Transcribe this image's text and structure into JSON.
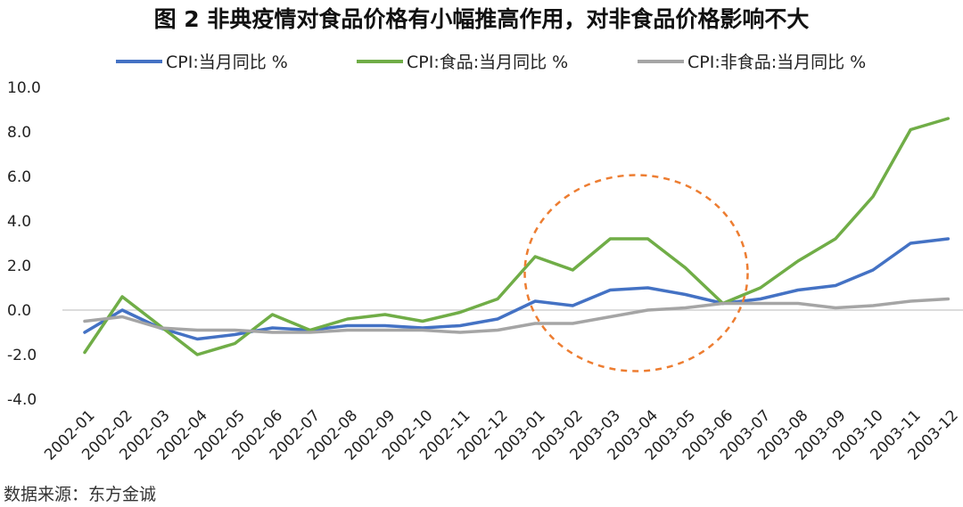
{
  "chart_data": {
    "type": "line",
    "title": "图 2   非典疫情对食品价格有小幅推高作用，对非食品价格影响不大",
    "categories": [
      "2002-01",
      "2002-02",
      "2002-03",
      "2002-04",
      "2002-05",
      "2002-06",
      "2002-07",
      "2002-08",
      "2002-09",
      "2002-10",
      "2002-11",
      "2002-12",
      "2003-01",
      "2003-02",
      "2003-03",
      "2003-04",
      "2003-05",
      "2003-06",
      "2003-07",
      "2003-08",
      "2003-09",
      "2003-10",
      "2003-11",
      "2003-12"
    ],
    "yticks": [
      "10.0",
      "8.0",
      "6.0",
      "4.0",
      "2.0",
      "0.0",
      "-2.0",
      "-4.0"
    ],
    "ylim": [
      -4,
      10
    ],
    "grid": false,
    "legend_position": "top",
    "series": [
      {
        "name": "CPI:当月同比 %",
        "color": "#4472C4",
        "values": [
          -1.0,
          0.0,
          -0.8,
          -1.3,
          -1.1,
          -0.8,
          -0.9,
          -0.7,
          -0.7,
          -0.8,
          -0.7,
          -0.4,
          0.4,
          0.2,
          0.9,
          1.0,
          0.7,
          0.3,
          0.5,
          0.9,
          1.1,
          1.8,
          3.0,
          3.2
        ]
      },
      {
        "name": "CPI:食品:当月同比 %",
        "color": "#70AD47",
        "values": [
          -1.9,
          0.6,
          -0.7,
          -2.0,
          -1.5,
          -0.2,
          -0.9,
          -0.4,
          -0.2,
          -0.5,
          -0.1,
          0.5,
          2.4,
          1.8,
          3.2,
          3.2,
          1.9,
          0.3,
          1.0,
          2.2,
          3.2,
          5.1,
          8.1,
          8.6
        ]
      },
      {
        "name": "CPI:非食品:当月同比 %",
        "color": "#A5A5A5",
        "values": [
          -0.5,
          -0.3,
          -0.8,
          -0.9,
          -0.9,
          -1.0,
          -1.0,
          -0.9,
          -0.9,
          -0.9,
          -1.0,
          -0.9,
          -0.6,
          -0.6,
          -0.3,
          0.0,
          0.1,
          0.3,
          0.3,
          0.3,
          0.1,
          0.2,
          0.4,
          0.5
        ]
      }
    ],
    "annotation": {
      "shape": "dashed-ellipse",
      "color": "#ED7D31",
      "center_category": "2003-04",
      "center_value": 2.5
    }
  },
  "source_text": "数据来源：东方金诚"
}
